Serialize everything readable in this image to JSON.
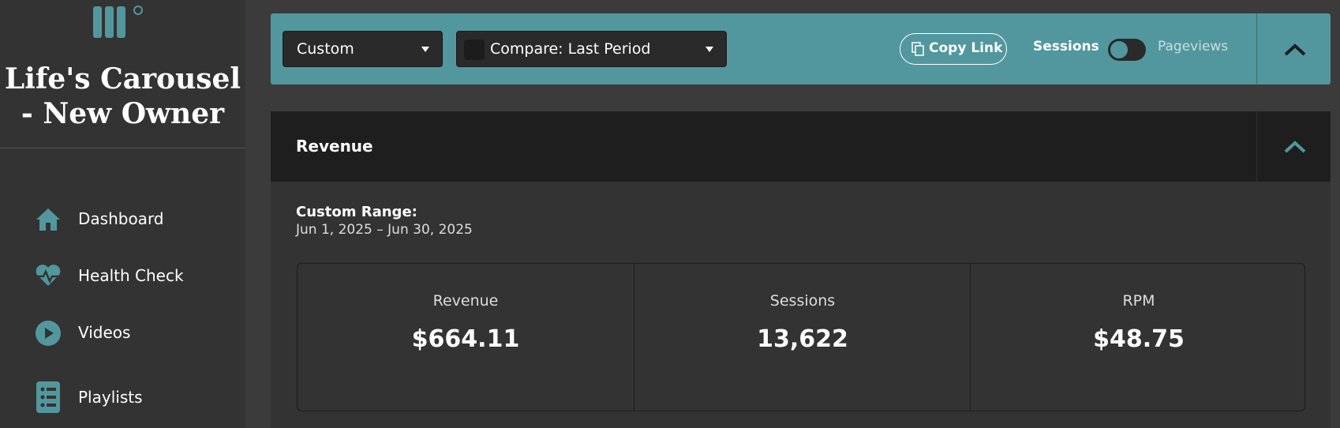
{
  "sidebar": {
    "title": "Life's Carousel - New Owner",
    "nav": [
      "Dashboard",
      "Health Check",
      "Videos",
      "Playlists"
    ]
  },
  "toolbar": {
    "date_range": "Custom",
    "compare": "Compare: Last Period",
    "copy_link": "Copy Link",
    "toggle_left": "Sessions",
    "toggle_right": "Pageviews"
  },
  "panel": {
    "title": "Revenue",
    "range_label": "Custom Range:",
    "range": "Jun 1, 2025 – Jun 30, 2025",
    "metrics": [
      {
        "label": "Revenue",
        "value": "$664.11"
      },
      {
        "label": "Sessions",
        "value": "13,622"
      },
      {
        "label": "RPM",
        "value": "$48.75"
      }
    ]
  }
}
